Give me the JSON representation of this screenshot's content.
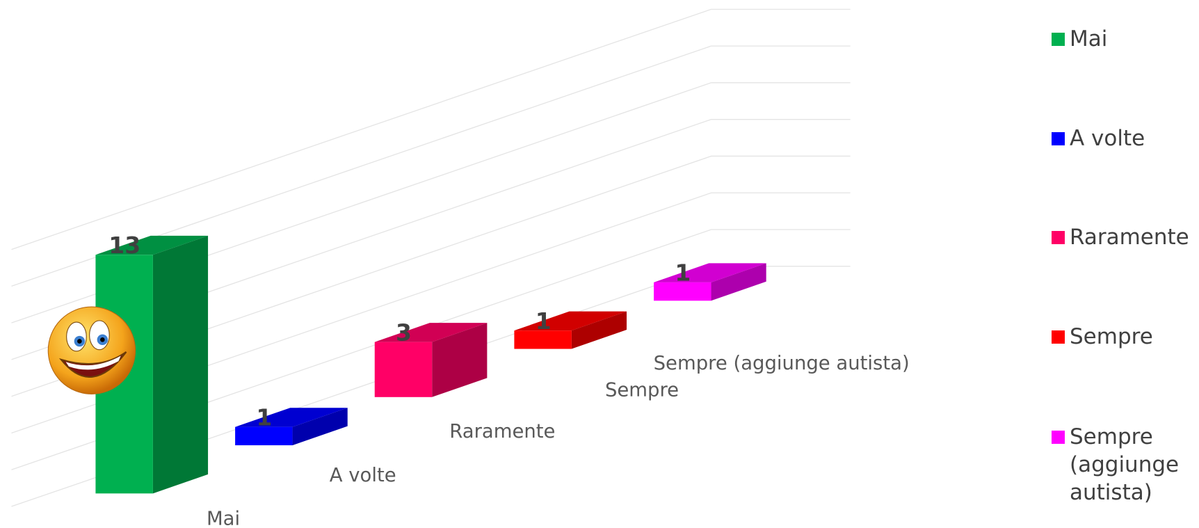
{
  "chart_data": {
    "type": "bar3d",
    "categories": [
      "Mai",
      "A volte",
      "Raramente",
      "Sempre",
      "Sempre (aggiunge autista)"
    ],
    "series": [
      {
        "name": "Mai",
        "color": "#00b050"
      },
      {
        "name": "A volte",
        "color": "#0000ff"
      },
      {
        "name": "Raramente",
        "color": "#ff0066"
      },
      {
        "name": "Sempre",
        "color": "#ff0000"
      },
      {
        "name": "Sempre (aggiunge autista)",
        "color": "#ff00ff"
      }
    ],
    "values": [
      13,
      1,
      3,
      1,
      1
    ],
    "ylim": [
      0,
      14
    ],
    "yticks": [
      0,
      2,
      4,
      6,
      8,
      10,
      12,
      14
    ],
    "grid": true,
    "legend": "right"
  }
}
